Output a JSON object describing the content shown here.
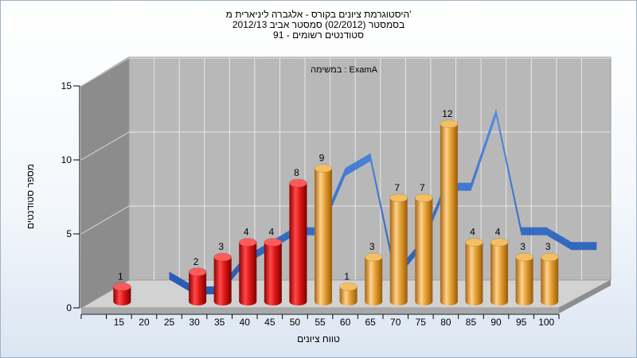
{
  "titles": {
    "line1": "היסטוגרמת ציונים בקורס - אלגברה ליניארית מ'",
    "line2": "בסמסטר  (02/2012)  סמסטר אביב 2012/13",
    "line3": "סטודנטים רשומים - 91"
  },
  "chart_data": {
    "type": "bar",
    "subtitle": "במשימה : ExamA",
    "xlabel": "טווח ציונים",
    "ylabel": "מספר סטודנטים",
    "ylim": [
      0,
      15
    ],
    "yticks": [
      "0",
      "5",
      "10",
      "15"
    ],
    "categories": [
      "15",
      "20",
      "25",
      "30",
      "35",
      "40",
      "45",
      "50",
      "55",
      "60",
      "65",
      "70",
      "75",
      "80",
      "85",
      "90",
      "95",
      "100"
    ],
    "values": [
      1,
      null,
      null,
      2,
      3,
      4,
      4,
      8,
      9,
      1,
      3,
      7,
      7,
      12,
      4,
      4,
      3,
      3
    ],
    "value_labels": [
      "1",
      "",
      "",
      "2",
      "3",
      "4",
      "4",
      "8",
      "9",
      "1",
      "3",
      "7",
      "7",
      "12",
      "4",
      "4",
      "3",
      "3"
    ],
    "colors": {
      "fail_bar": "#e01818",
      "pass_bar": "#e4a035",
      "trend_band": "#2f6fd0",
      "wall": "#b8b8b8",
      "side_wall": "#8c8c8c"
    },
    "fail_threshold": "55",
    "grid": true
  }
}
